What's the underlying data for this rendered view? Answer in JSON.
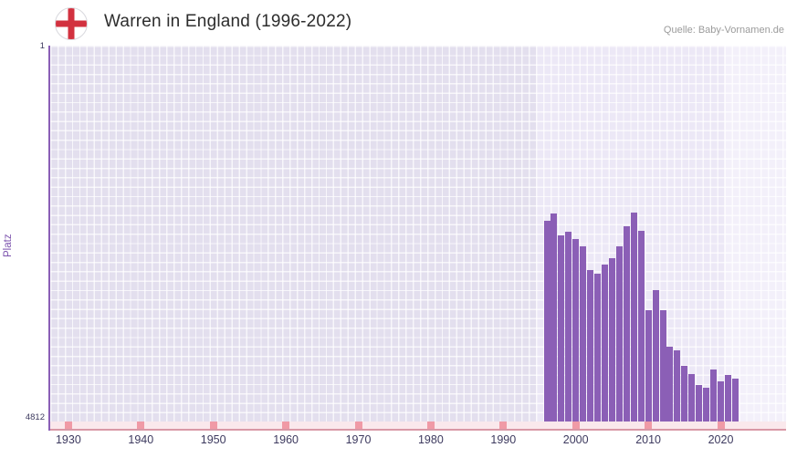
{
  "header": {
    "title": "Warren in England (1996-2022)",
    "source": "Quelle: Baby-Vornamen.de"
  },
  "chart_data": {
    "type": "bar",
    "title": "Warren in England (1996-2022)",
    "xlabel": "",
    "ylabel": "Platz",
    "grid": "on",
    "legend": "none",
    "y_axis": {
      "min": 1,
      "max": 4812,
      "inverted": true,
      "top_tick_label": "1",
      "bottom_tick_label": "4812"
    },
    "x_axis": {
      "year_start": 1927.5,
      "year_end": 2029,
      "ticks": [
        1930,
        1940,
        1950,
        1960,
        1970,
        1980,
        1990,
        2000,
        2010,
        2020
      ]
    },
    "categories": [
      1996,
      1997,
      1998,
      1999,
      2000,
      2001,
      2002,
      2003,
      2004,
      2005,
      2006,
      2007,
      2008,
      2009,
      2010,
      2011,
      2012,
      2013,
      2014,
      2015,
      2016,
      2017,
      2018,
      2019,
      2020,
      2021,
      2022
    ],
    "values": [
      2240,
      2150,
      2430,
      2380,
      2480,
      2570,
      2870,
      2920,
      2800,
      2720,
      2570,
      2310,
      2140,
      2370,
      3390,
      3130,
      3390,
      3850,
      3900,
      4100,
      4200,
      4340,
      4380,
      4140,
      4300,
      4220,
      4260
    ],
    "bar_color": "#8b5fb6",
    "highlight_band": {
      "from": 1994.5,
      "to": 2020.5
    }
  },
  "colors": {
    "bar": "#8b5fb6",
    "axis": "#8a5fb6",
    "plot_background": "#e3dfee",
    "band_light": "#ece8f6",
    "band_lighter": "#f3f0fa",
    "strip_background": "#fae8ec",
    "strip_mark": "#f09aa6",
    "flag_cross_red": "#d2313f",
    "y_axis_label": "#7b52ad",
    "tick_text": "#3d3a5f"
  }
}
